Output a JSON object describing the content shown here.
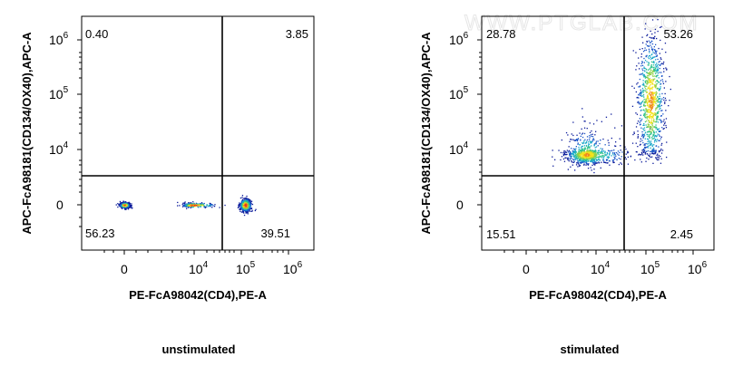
{
  "watermark": "WWW.PTGLAB.COM",
  "chart_data": [
    {
      "type": "scatter",
      "caption": "unstimulated",
      "xlabel": "PE-FcA98042(CD4),PE-A",
      "ylabel": "APC-FcA98181(CD134/OX40),APC-A",
      "x_ticks": [
        {
          "base": "0",
          "exp": ""
        },
        {
          "base": "10",
          "exp": "4"
        },
        {
          "base": "10",
          "exp": "5"
        },
        {
          "base": "10",
          "exp": "6"
        }
      ],
      "y_ticks": [
        {
          "base": "0",
          "exp": ""
        },
        {
          "base": "10",
          "exp": "4"
        },
        {
          "base": "10",
          "exp": "5"
        },
        {
          "base": "10",
          "exp": "6"
        }
      ],
      "quadrants": {
        "top_left": "0.40",
        "top_right": "3.85",
        "bottom_left": "56.23",
        "bottom_right": "39.51"
      },
      "populations": [
        {
          "x": 0,
          "y": 0,
          "sx": 0.14,
          "sy": 0.1,
          "n": 700
        },
        {
          "x": 3.9,
          "y": 0,
          "sx": 0.28,
          "sy": 0.08,
          "n": 260
        },
        {
          "x": 5.08,
          "y": 0,
          "sx": 0.06,
          "sy": 0.22,
          "n": 520
        }
      ]
    },
    {
      "type": "scatter",
      "caption": "stimulated",
      "xlabel": "PE-FcA98042(CD4),PE-A",
      "ylabel": "APC-FcA98181(CD134/OX40),APC-A",
      "x_ticks": [
        {
          "base": "0",
          "exp": ""
        },
        {
          "base": "10",
          "exp": "4"
        },
        {
          "base": "10",
          "exp": "5"
        },
        {
          "base": "10",
          "exp": "6"
        }
      ],
      "y_ticks": [
        {
          "base": "0",
          "exp": ""
        },
        {
          "base": "10",
          "exp": "4"
        },
        {
          "base": "10",
          "exp": "5"
        },
        {
          "base": "10",
          "exp": "6"
        }
      ],
      "quadrants": {
        "top_left": "28.78",
        "top_right": "53.26",
        "bottom_left": "15.51",
        "bottom_right": "2.45"
      },
      "populations": [
        {
          "x": 3.45,
          "y": 3.65,
          "sx": 0.6,
          "sy": 0.35,
          "n": 900
        },
        {
          "x": 5.1,
          "y": 4.9,
          "sx": 0.14,
          "sy": 0.6,
          "n": 1000
        }
      ]
    }
  ]
}
